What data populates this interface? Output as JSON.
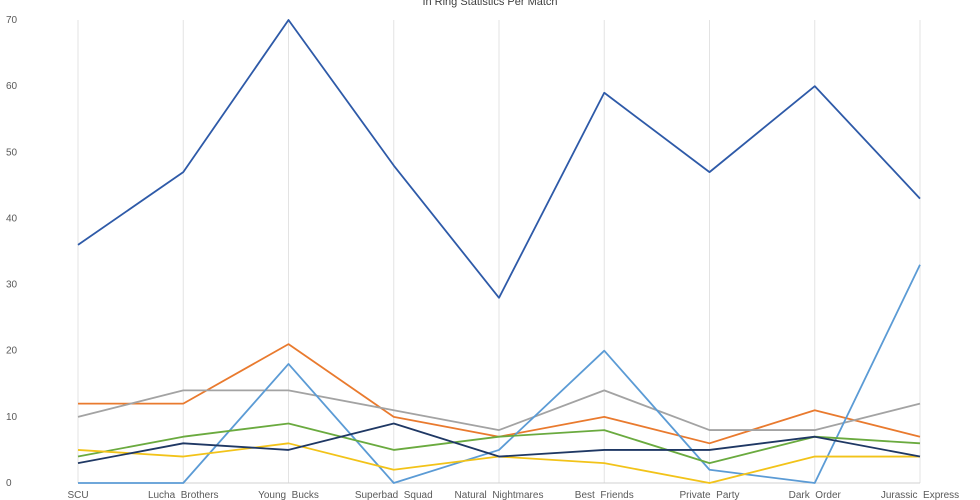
{
  "chart_data": {
    "type": "line",
    "title": "In Ring Statistics Per Match",
    "xlabel": "",
    "ylabel": "",
    "ylim": [
      0,
      70
    ],
    "yticks": [
      0,
      10,
      20,
      30,
      40,
      50,
      60,
      70
    ],
    "grid": "vertical",
    "legend": "none",
    "categories": [
      "SCU",
      "Lucha  Brothers",
      "Young  Bucks",
      "Superbad  Squad",
      "Natural  Nightmares",
      "Best  Friends",
      "Private  Party",
      "Dark  Order",
      "Jurassic  Express"
    ],
    "series": [
      {
        "color": "#2e5aa8",
        "values": [
          36,
          47,
          70,
          48,
          28,
          59,
          47,
          60,
          43
        ]
      },
      {
        "color": "#e97a2e",
        "values": [
          12,
          12,
          21,
          10,
          7,
          10,
          6,
          11,
          7
        ]
      },
      {
        "color": "#a3a3a3",
        "values": [
          10,
          14,
          14,
          11,
          8,
          14,
          8,
          8,
          12
        ]
      },
      {
        "color": "#5b9bd5",
        "values": [
          0,
          0,
          18,
          0,
          5,
          20,
          2,
          0,
          33
        ]
      },
      {
        "color": "#6aaa3f",
        "values": [
          4,
          7,
          9,
          5,
          7,
          8,
          3,
          7,
          6
        ]
      },
      {
        "color": "#f2c319",
        "values": [
          5,
          4,
          6,
          2,
          4,
          3,
          0,
          4,
          4
        ]
      },
      {
        "color": "#1f3864",
        "values": [
          3,
          6,
          5,
          9,
          4,
          5,
          5,
          7,
          4
        ]
      }
    ]
  }
}
